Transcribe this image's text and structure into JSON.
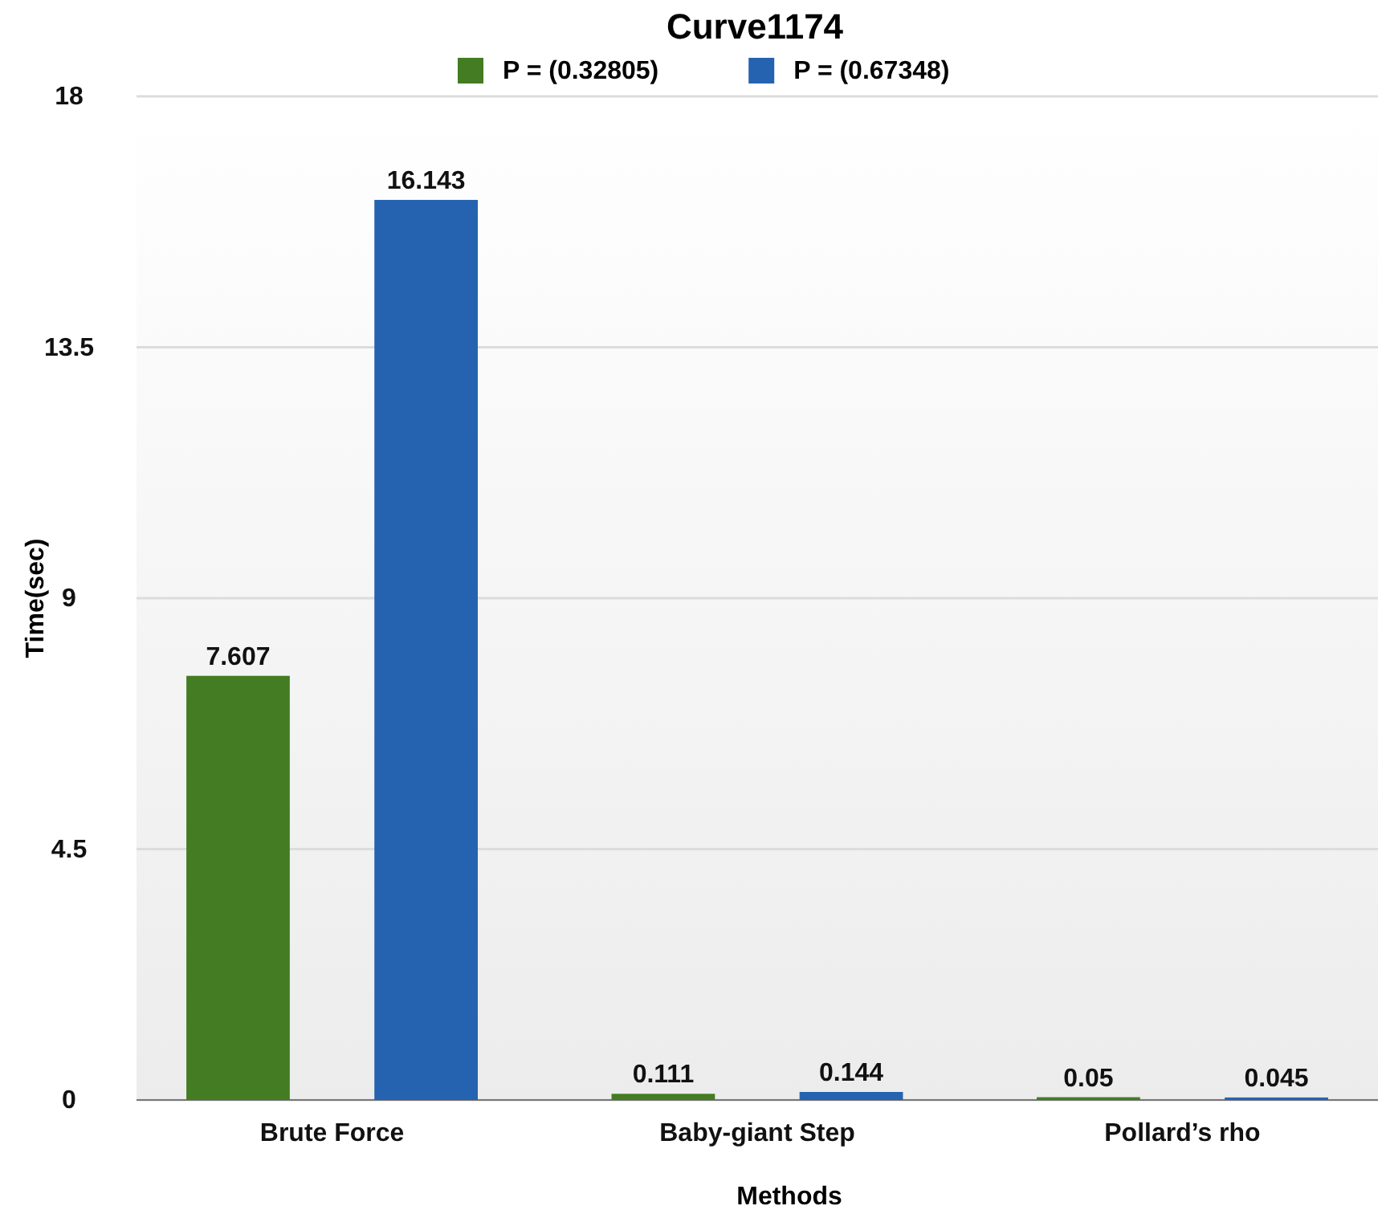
{
  "chart_data": {
    "type": "bar",
    "title": "Curve1174",
    "xlabel": "Methods",
    "ylabel": "Time(sec)",
    "categories": [
      "Brute Force",
      "Baby-giant Step",
      "Pollard’s rho"
    ],
    "series": [
      {
        "name": "P = (0.32805)",
        "color": "#437c22",
        "values": [
          7.607,
          0.111,
          0.05
        ]
      },
      {
        "name": "P = (0.67348)",
        "color": "#2563b0",
        "values": [
          16.143,
          0.144,
          0.045
        ]
      }
    ],
    "ylim": [
      0,
      18
    ],
    "yticks": [
      0,
      4.5,
      9,
      13.5,
      18
    ],
    "grid": "y",
    "legend": "top",
    "data_labels": true
  }
}
